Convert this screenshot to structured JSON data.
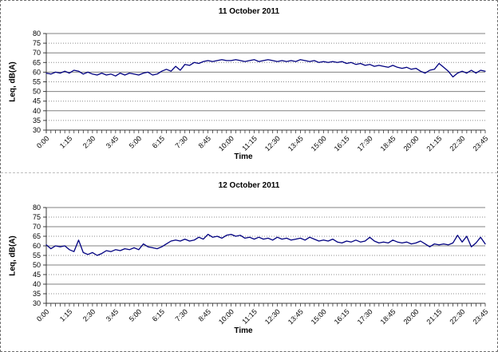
{
  "colors": {
    "line": "#000080",
    "grid_major": "#808080",
    "grid_minor": "#8c8c8c",
    "axis": "#3a3a3a",
    "background": "#ffffff"
  },
  "chart_data": [
    {
      "type": "line",
      "title": "11 October 2011",
      "xlabel": "Time",
      "ylabel": "Leq, dB(A)",
      "ylim": [
        30,
        80
      ],
      "y_tick_step": 5,
      "y_tick_labels": [
        "80",
        "75",
        "70",
        "65",
        "60",
        "55",
        "50",
        "45",
        "40",
        "35",
        "30"
      ],
      "x_tick_labels": [
        "0:00",
        "1:15",
        "2:30",
        "3:45",
        "5:00",
        "6:15",
        "7:30",
        "8:45",
        "10:00",
        "11:15",
        "12:30",
        "13:45",
        "15:00",
        "16:15",
        "17:30",
        "18:45",
        "20:00",
        "21:15",
        "22:30",
        "23:45"
      ],
      "x_interval_minutes": 15,
      "legend": "none",
      "grid": "horizontal",
      "line_color": "#000080",
      "x": [
        "0:00",
        "0:15",
        "0:30",
        "0:45",
        "1:00",
        "1:15",
        "1:30",
        "1:45",
        "2:00",
        "2:15",
        "2:30",
        "2:45",
        "3:00",
        "3:15",
        "3:30",
        "3:45",
        "4:00",
        "4:15",
        "4:30",
        "4:45",
        "5:00",
        "5:15",
        "5:30",
        "5:45",
        "6:00",
        "6:15",
        "6:30",
        "6:45",
        "7:00",
        "7:15",
        "7:30",
        "7:45",
        "8:00",
        "8:15",
        "8:30",
        "8:45",
        "9:00",
        "9:15",
        "9:30",
        "9:45",
        "10:00",
        "10:15",
        "10:30",
        "10:45",
        "11:00",
        "11:15",
        "11:30",
        "11:45",
        "12:00",
        "12:15",
        "12:30",
        "12:45",
        "13:00",
        "13:15",
        "13:30",
        "13:45",
        "14:00",
        "14:15",
        "14:30",
        "14:45",
        "15:00",
        "15:15",
        "15:30",
        "15:45",
        "16:00",
        "16:15",
        "16:30",
        "16:45",
        "17:00",
        "17:15",
        "17:30",
        "17:45",
        "18:00",
        "18:15",
        "18:30",
        "18:45",
        "19:00",
        "19:15",
        "19:30",
        "19:45",
        "20:00",
        "20:15",
        "20:30",
        "20:45",
        "21:00",
        "21:15",
        "21:30",
        "21:45",
        "22:00",
        "22:15",
        "22:30",
        "22:45",
        "23:00",
        "23:15",
        "23:30",
        "23:45"
      ],
      "values": [
        59.5,
        59,
        60,
        59.5,
        60.5,
        59.5,
        61,
        60.5,
        59,
        60,
        59,
        58.5,
        59.5,
        58.5,
        59,
        58,
        59.5,
        58.5,
        59.5,
        59,
        58.5,
        59.5,
        60,
        58.5,
        59,
        60.5,
        61.5,
        60.5,
        63,
        61,
        64,
        63.5,
        65,
        64.5,
        65.5,
        66,
        65.5,
        66,
        66.5,
        66,
        66,
        66.5,
        66,
        65.5,
        66,
        66.5,
        65.5,
        66,
        66.5,
        66,
        65.5,
        66,
        65.5,
        66,
        65.5,
        66.5,
        66,
        65.5,
        66,
        65,
        65.5,
        65,
        65.5,
        65,
        65.5,
        64.5,
        65,
        64,
        64.5,
        63.5,
        64,
        63,
        63.5,
        63,
        62.5,
        63.5,
        62.5,
        62,
        62.5,
        61.5,
        62,
        60.5,
        59.5,
        61,
        61.5,
        64.5,
        62.5,
        60.5,
        57.5,
        59.5,
        60.5,
        59.5,
        61,
        59.5,
        61,
        60.5
      ]
    },
    {
      "type": "line",
      "title": "12 October 2011",
      "xlabel": "Time",
      "ylabel": "Leq, dB(A)",
      "ylim": [
        30,
        80
      ],
      "y_tick_step": 5,
      "y_tick_labels": [
        "80",
        "75",
        "70",
        "65",
        "60",
        "55",
        "50",
        "45",
        "40",
        "35",
        "30"
      ],
      "x_tick_labels": [
        "0:00",
        "1:15",
        "2:30",
        "3:45",
        "5:00",
        "6:15",
        "7:30",
        "8:45",
        "10:00",
        "11:15",
        "12:30",
        "13:45",
        "15:00",
        "16:15",
        "17:30",
        "18:45",
        "20:00",
        "21:15",
        "22:30",
        "23:45"
      ],
      "x_interval_minutes": 15,
      "legend": "none",
      "grid": "horizontal",
      "line_color": "#000080",
      "x": [
        "0:00",
        "0:15",
        "0:30",
        "0:45",
        "1:00",
        "1:15",
        "1:30",
        "1:45",
        "2:00",
        "2:15",
        "2:30",
        "2:45",
        "3:00",
        "3:15",
        "3:30",
        "3:45",
        "4:00",
        "4:15",
        "4:30",
        "4:45",
        "5:00",
        "5:15",
        "5:30",
        "5:45",
        "6:00",
        "6:15",
        "6:30",
        "6:45",
        "7:00",
        "7:15",
        "7:30",
        "7:45",
        "8:00",
        "8:15",
        "8:30",
        "8:45",
        "9:00",
        "9:15",
        "9:30",
        "9:45",
        "10:00",
        "10:15",
        "10:30",
        "10:45",
        "11:00",
        "11:15",
        "11:30",
        "11:45",
        "12:00",
        "12:15",
        "12:30",
        "12:45",
        "13:00",
        "13:15",
        "13:30",
        "13:45",
        "14:00",
        "14:15",
        "14:30",
        "14:45",
        "15:00",
        "15:15",
        "15:30",
        "15:45",
        "16:00",
        "16:15",
        "16:30",
        "16:45",
        "17:00",
        "17:15",
        "17:30",
        "17:45",
        "18:00",
        "18:15",
        "18:30",
        "18:45",
        "19:00",
        "19:15",
        "19:30",
        "19:45",
        "20:00",
        "20:15",
        "20:30",
        "20:45",
        "21:00",
        "21:15",
        "21:30",
        "21:45",
        "22:00",
        "22:15",
        "22:30",
        "22:45",
        "23:00",
        "23:15",
        "23:30",
        "23:45"
      ],
      "values": [
        60.5,
        58.5,
        60,
        59.5,
        60,
        58,
        57,
        63,
        56.5,
        55.5,
        56.5,
        55,
        56,
        57.5,
        57,
        58,
        57.5,
        58.5,
        58,
        59,
        58,
        61,
        59.5,
        59,
        58.5,
        59.5,
        61,
        62.5,
        63,
        62.5,
        63.5,
        62.5,
        63,
        64.5,
        63.5,
        66,
        64.5,
        65,
        64,
        65.5,
        66,
        65,
        65.5,
        64,
        64.5,
        63.5,
        64.5,
        63.5,
        64,
        63,
        64.5,
        63.5,
        64,
        63,
        63.5,
        64,
        63,
        64.5,
        63.5,
        62.5,
        63,
        62.5,
        63.5,
        62,
        61.5,
        62.5,
        62,
        63,
        62,
        62.5,
        64.5,
        62.5,
        61.5,
        62,
        61.5,
        63,
        62,
        61.5,
        62,
        61,
        61.5,
        62.5,
        61,
        59.5,
        61,
        60.5,
        61,
        60.5,
        61.5,
        65.5,
        62,
        65,
        59.5,
        61.5,
        64.5,
        61
      ]
    }
  ]
}
